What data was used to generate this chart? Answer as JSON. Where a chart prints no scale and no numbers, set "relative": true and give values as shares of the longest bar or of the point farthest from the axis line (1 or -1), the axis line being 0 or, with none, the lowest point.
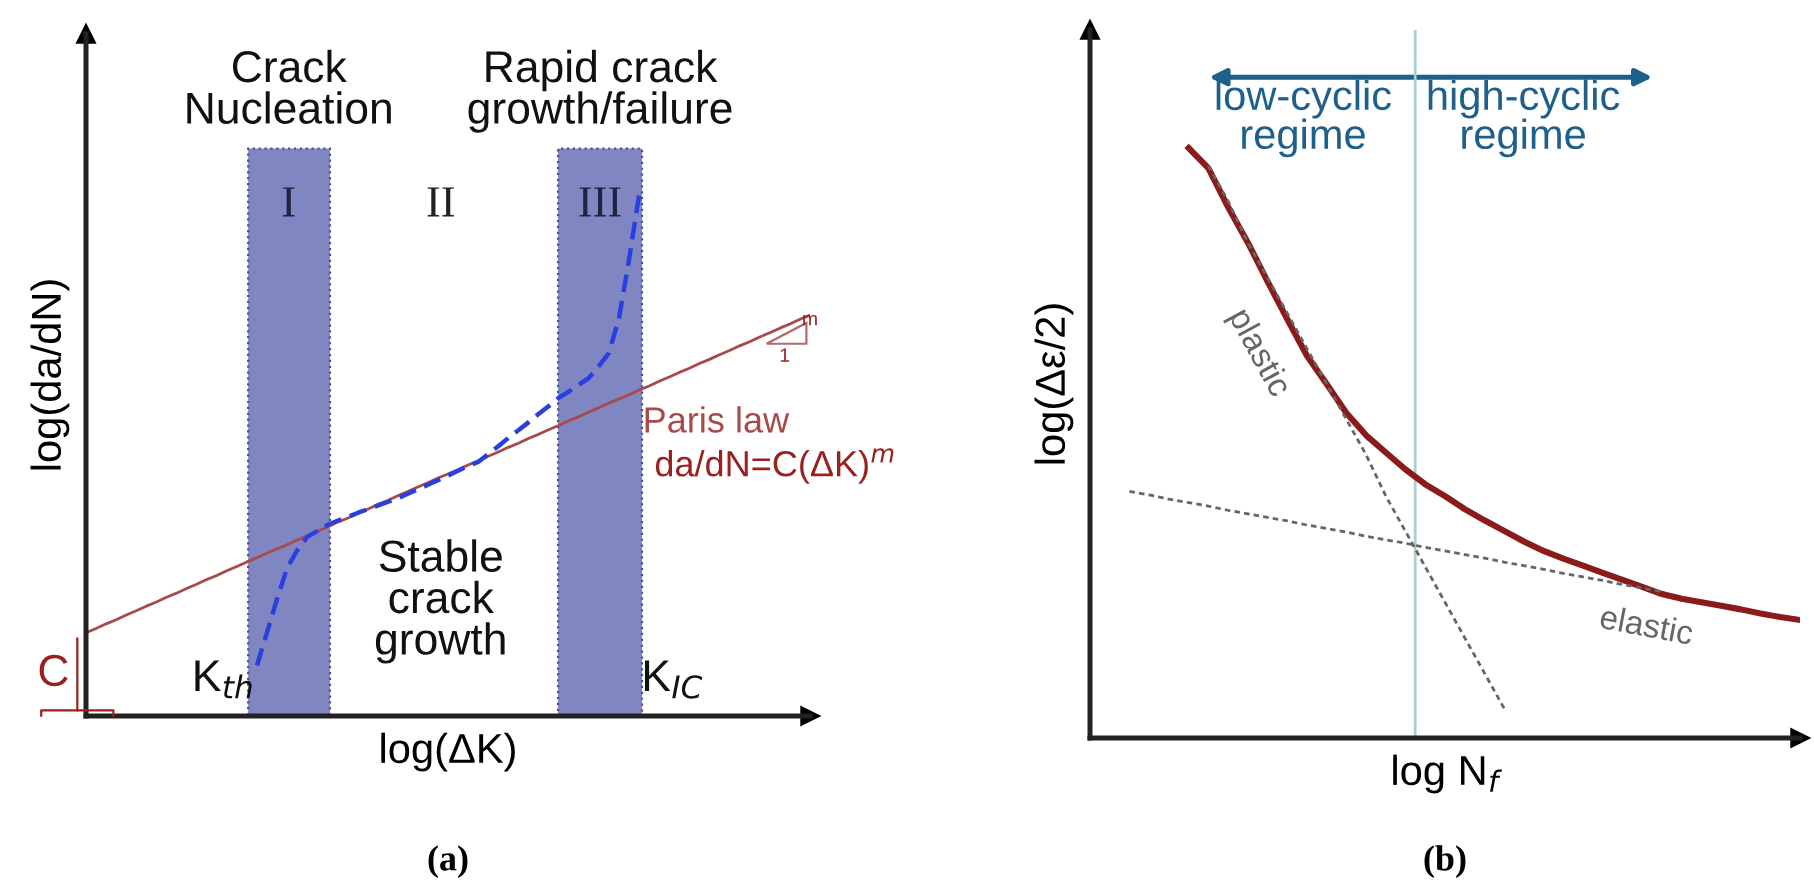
{
  "chart_data": [
    {
      "type": "line",
      "relative": true,
      "xlabel": "log(ΔK)",
      "ylabel": "log(da/dN)",
      "tick_labels": false,
      "legend": false,
      "categories": [
        null,
        null,
        null,
        null,
        null,
        null,
        null,
        null,
        null,
        null,
        null,
        null,
        null,
        null,
        null,
        null,
        null,
        null,
        null,
        null,
        null,
        null,
        null,
        null,
        null,
        null,
        null,
        null,
        null,
        null,
        null,
        null,
        null,
        null,
        null,
        null,
        null,
        null,
        null,
        null,
        null,
        null,
        null,
        null,
        null,
        null,
        null,
        null,
        null,
        null,
        null,
        null,
        null,
        null,
        null,
        null,
        null,
        null,
        null,
        null,
        null,
        null,
        null,
        null,
        null,
        null,
        null,
        null,
        null,
        null,
        null,
        null,
        null
      ],
      "series": [
        {
          "name": "Paris law",
          "color": "#a84a4a",
          "line_style": "solid",
          "values": [
            0.16,
            0.168,
            0.177,
            0.185,
            0.194,
            0.202,
            0.211,
            0.219,
            0.228,
            0.236,
            0.245,
            0.253,
            0.262,
            0.27,
            0.279,
            0.287,
            0.296,
            0.304,
            0.313,
            0.321,
            0.329,
            0.338,
            0.346,
            0.355,
            0.363,
            0.372,
            0.38,
            0.389,
            0.397,
            0.406,
            0.414,
            0.423,
            0.431,
            0.44,
            0.448,
            0.457,
            0.465,
            0.473,
            0.482,
            0.49,
            0.499,
            0.507,
            0.516,
            0.524,
            0.533,
            0.541,
            0.55,
            0.558,
            0.567,
            0.575,
            0.584,
            0.592,
            0.601,
            0.609,
            0.617,
            0.626,
            0.634,
            0.643,
            0.651,
            0.66,
            0.668,
            0.677,
            0.685,
            0.694,
            0.702,
            0.711,
            0.719,
            0.728,
            0.736,
            0.745,
            0.753,
            0.762,
            0.77
          ]
        },
        {
          "color": "#2a3fe0",
          "line_style": "dashed",
          "values": [
            null,
            null,
            null,
            null,
            null,
            null,
            null,
            null,
            null,
            null,
            null,
            null,
            null,
            null,
            null,
            null,
            null,
            0.097,
            0.16,
            0.225,
            0.284,
            0.318,
            0.344,
            0.355,
            0.367,
            0.375,
            0.382,
            0.39,
            0.397,
            0.404,
            0.411,
            0.418,
            0.427,
            0.435,
            0.444,
            0.453,
            0.462,
            0.471,
            0.48,
            0.488,
            0.503,
            0.518,
            0.534,
            0.549,
            0.564,
            0.58,
            0.595,
            0.611,
            0.623,
            0.636,
            0.649,
            0.672,
            0.697,
            0.764,
            0.876,
            1.0,
            null,
            null,
            null,
            null,
            null,
            null,
            null,
            null,
            null,
            null,
            null,
            null,
            null,
            null,
            null,
            null,
            null
          ]
        }
      ],
      "annotations": [
        "Crack\nNucleation",
        "Rapid crack\ngrowth/failure",
        "I",
        "II",
        "III",
        "Stable\ncrack\ngrowth",
        "da/dN=C(ΔK)$^{m}$",
        "1",
        "m",
        "C",
        "K$_{th}$",
        "K$_{IC}$",
        "(a)"
      ]
    },
    {
      "type": "line",
      "relative": true,
      "xlabel": "log N$_{f}$",
      "ylabel": "log(Δε/2)",
      "tick_labels": false,
      "legend": false,
      "categories": [
        null,
        null,
        null,
        null,
        null,
        null,
        null,
        null,
        null,
        null,
        null,
        null,
        null,
        null,
        null,
        null,
        null,
        null,
        null,
        null,
        null,
        null,
        null,
        null,
        null,
        null,
        null,
        null,
        null,
        null,
        null,
        null,
        null,
        null,
        null,
        null,
        null
      ],
      "series": [
        {
          "color": "#8b1a1a",
          "line_style": "solid",
          "values": [
            null,
            null,
            null,
            null,
            null,
            1.0,
            0.966,
            0.9,
            0.84,
            0.774,
            0.71,
            0.648,
            0.6,
            0.551,
            0.513,
            0.484,
            0.455,
            0.43,
            0.41,
            0.388,
            0.369,
            0.351,
            0.333,
            0.317,
            0.304,
            0.292,
            0.28,
            0.268,
            0.256,
            0.244,
            0.236,
            0.23,
            0.224,
            0.218,
            0.211,
            0.205,
            0.2
          ]
        },
        {
          "name": "plastic",
          "color": "#666666",
          "line_style": "dotted",
          "values": [
            null,
            null,
            null,
            null,
            null,
            null,
            0.97,
            0.91,
            0.84,
            0.78,
            0.72,
            0.66,
            0.6,
            0.54,
            0.48,
            0.41,
            0.35,
            0.29,
            0.23,
            0.17,
            0.11,
            0.05,
            null,
            null,
            null,
            null,
            null,
            null,
            null,
            null,
            null,
            null,
            null,
            null,
            null,
            null,
            null
          ]
        },
        {
          "name": "elastic",
          "color": "#666666",
          "line_style": "dotted",
          "values": [
            null,
            null,
            0.418,
            0.412,
            0.405,
            0.399,
            0.393,
            0.386,
            0.38,
            0.374,
            0.368,
            0.361,
            0.355,
            0.349,
            0.342,
            0.336,
            0.33,
            0.323,
            0.317,
            0.311,
            0.305,
            0.298,
            0.292,
            0.286,
            0.279,
            0.273,
            0.267,
            0.26,
            0.254,
            0.248,
            null,
            null,
            null,
            null,
            null,
            null,
            null
          ]
        }
      ],
      "annotations": [
        "low-cyclic\nregime",
        "high-cyclic\nregime",
        "(b)"
      ]
    }
  ]
}
